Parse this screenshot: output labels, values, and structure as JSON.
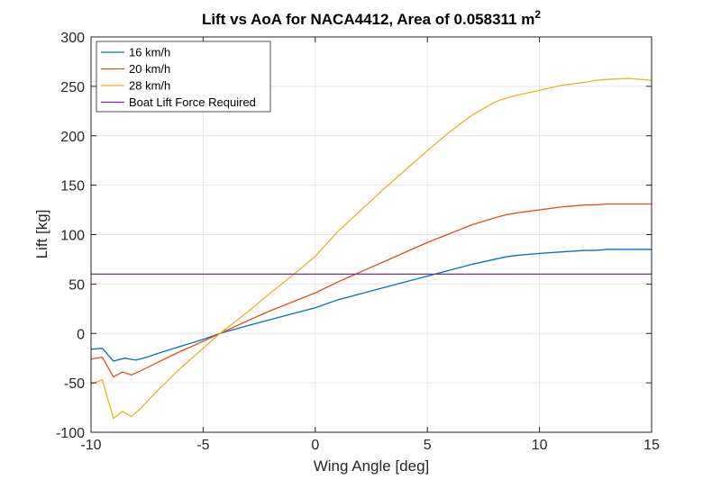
{
  "chart_data": {
    "type": "line",
    "title_main": "Lift vs AoA for NACA4412, Area of 0.058311 m",
    "title_sup": "2",
    "xlabel": "Wing Angle [deg]",
    "ylabel": "Lift [kg]",
    "xlim": [
      -10,
      15
    ],
    "ylim": [
      -100,
      300
    ],
    "xticks": [
      -10,
      -5,
      0,
      5,
      10,
      15
    ],
    "yticks": [
      -100,
      -50,
      0,
      50,
      100,
      150,
      200,
      250,
      300
    ],
    "grid": true,
    "legend_position": "top-left",
    "series": [
      {
        "name": "16 km/h",
        "color": "#0072BD",
        "x": [
          -10,
          -9.5,
          -9.0,
          -8.5,
          -8.0,
          -7.5,
          -7.0,
          -6.0,
          -5.0,
          -4.25,
          -3.0,
          -2.0,
          -1.0,
          0.0,
          1.0,
          2.0,
          3.0,
          4.0,
          5.0,
          6.0,
          7.0,
          8.0,
          8.5,
          9.0,
          10.0,
          11.0,
          12.0,
          12.5,
          13.0,
          14.0,
          15.0
        ],
        "values": [
          -16,
          -15,
          -28,
          -25,
          -27,
          -24,
          -20,
          -13,
          -6,
          0,
          8,
          14,
          20,
          26,
          34,
          40,
          46,
          52,
          58,
          64,
          70,
          75,
          77.5,
          79,
          81,
          82.5,
          84,
          84,
          85,
          85,
          85
        ]
      },
      {
        "name": "20 km/h",
        "color": "#D95319",
        "x": [
          -10,
          -9.5,
          -9.0,
          -8.6,
          -8.2,
          -7.8,
          -7.0,
          -6.0,
          -5.0,
          -4.25,
          -3.0,
          -2.0,
          -1.0,
          0.0,
          1.0,
          2.0,
          3.0,
          4.0,
          5.0,
          6.0,
          7.0,
          8.0,
          8.5,
          9.0,
          10.0,
          11.0,
          12.0,
          12.5,
          13.0,
          14.0,
          15.0
        ],
        "values": [
          -26,
          -24,
          -44,
          -39,
          -42,
          -38,
          -29,
          -18,
          -8,
          0,
          13,
          23,
          32,
          41,
          52,
          62,
          72,
          82,
          92,
          101,
          110,
          117,
          120,
          122,
          125,
          128,
          130,
          130,
          131,
          131,
          131
        ]
      },
      {
        "name": "28 km/h",
        "color": "#EDB120",
        "x": [
          -10,
          -9.5,
          -9.0,
          -8.6,
          -8.2,
          -7.8,
          -7.0,
          -6.0,
          -5.0,
          -4.25,
          -3.0,
          -2.0,
          -1.0,
          0.0,
          1.0,
          2.0,
          3.0,
          4.0,
          5.0,
          6.0,
          7.0,
          8.0,
          8.5,
          9.0,
          10.0,
          11.0,
          12.0,
          12.5,
          13.0,
          14.0,
          15.0
        ],
        "values": [
          -51,
          -47,
          -86,
          -79,
          -84,
          -76,
          -57,
          -35,
          -15,
          0,
          22,
          41,
          59,
          78,
          103,
          124,
          145,
          165,
          185,
          204,
          221,
          234,
          238,
          241,
          246,
          251,
          254,
          256,
          257,
          258,
          256
        ]
      },
      {
        "name": "Boat Lift Force Required",
        "color": "#7E2F8E",
        "x": [
          -10,
          15
        ],
        "values": [
          60,
          60
        ]
      }
    ]
  }
}
